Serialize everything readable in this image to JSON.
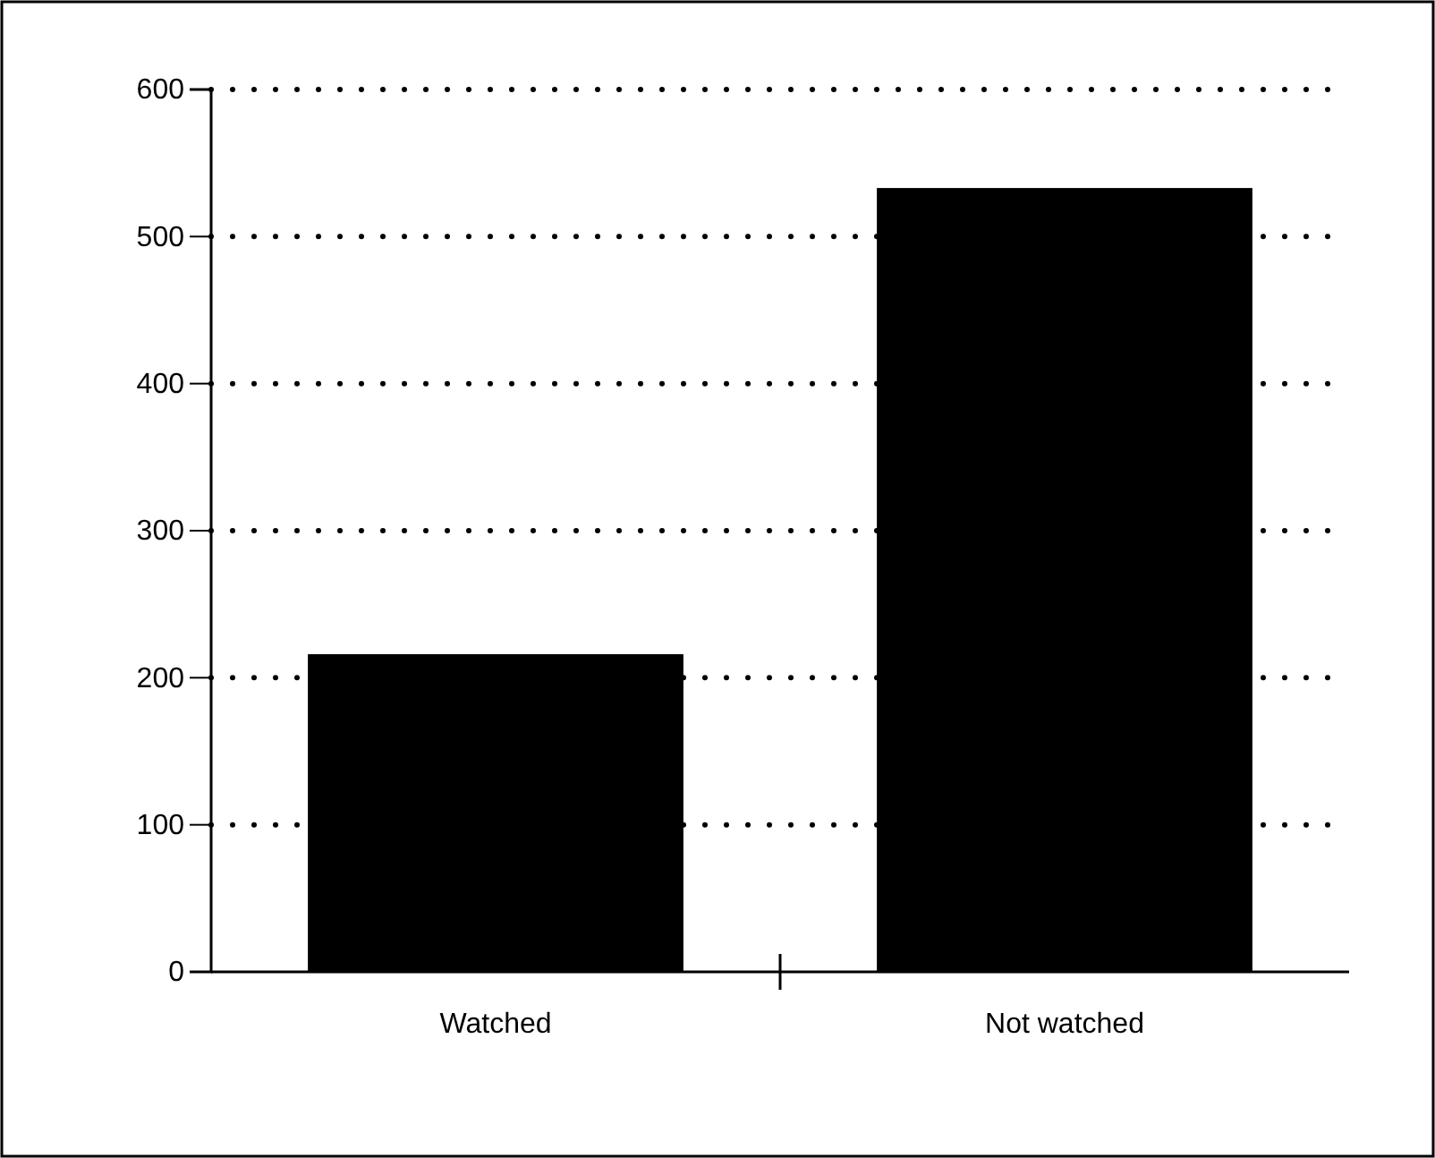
{
  "chart_data": {
    "type": "bar",
    "categories": [
      "Watched",
      "Not watched"
    ],
    "values": [
      216,
      533
    ],
    "color": "#000000",
    "ylim": [
      0,
      600
    ],
    "yticks": [
      0,
      100,
      200,
      300,
      400,
      500,
      600
    ],
    "grid": "y"
  }
}
